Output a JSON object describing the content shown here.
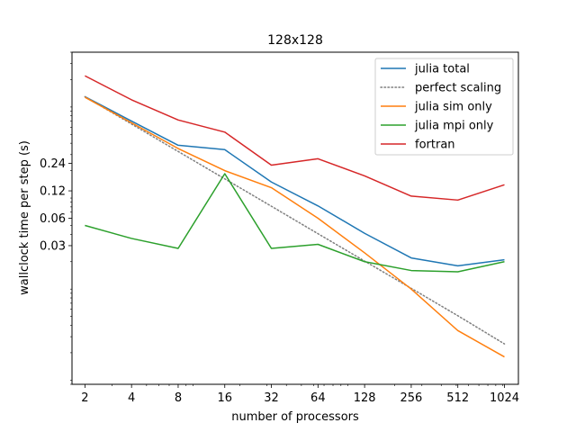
{
  "chart_data": {
    "type": "line",
    "title": "128x128",
    "xlabel": "number of processors",
    "ylabel": "wallclock time per step (s)",
    "x_scale": "log2",
    "y_scale": "log",
    "x": [
      2,
      4,
      8,
      16,
      32,
      64,
      128,
      256,
      512,
      1024
    ],
    "x_tick_labels": [
      "2",
      "4",
      "8",
      "16",
      "32",
      "64",
      "128",
      "256",
      "512",
      "1024"
    ],
    "y_tick_values": [
      0.03,
      0.06,
      0.12,
      0.24
    ],
    "y_tick_labels": [
      "0.03",
      "0.06",
      "0.12",
      "0.24"
    ],
    "xlim": [
      1.65,
      1260
    ],
    "ylim": [
      0.0009,
      4.0
    ],
    "legend_position": "top-right",
    "series": [
      {
        "name": "julia total",
        "color": "#1f77b4",
        "style": "solid",
        "values": [
          1.3,
          0.7,
          0.38,
          0.34,
          0.15,
          0.082,
          0.041,
          0.022,
          0.018,
          0.021
        ]
      },
      {
        "name": "perfect scaling",
        "color": "#7f7f7f",
        "style": "dotted",
        "values": [
          1.3,
          0.65,
          0.325,
          0.1625,
          0.0813,
          0.0406,
          0.0203,
          0.0102,
          0.0051,
          0.0025
        ]
      },
      {
        "name": "julia sim only",
        "color": "#ff7f0e",
        "style": "solid",
        "values": [
          1.28,
          0.67,
          0.35,
          0.2,
          0.13,
          0.06,
          0.025,
          0.01,
          0.0035,
          0.0018
        ]
      },
      {
        "name": "julia mpi only",
        "color": "#2ca02c",
        "style": "solid",
        "values": [
          0.05,
          0.036,
          0.028,
          0.185,
          0.028,
          0.031,
          0.02,
          0.016,
          0.0155,
          0.02
        ]
      },
      {
        "name": "fortran",
        "color": "#d62728",
        "style": "solid",
        "values": [
          2.2,
          1.2,
          0.72,
          0.53,
          0.23,
          0.27,
          0.175,
          0.105,
          0.095,
          0.14
        ]
      }
    ]
  }
}
